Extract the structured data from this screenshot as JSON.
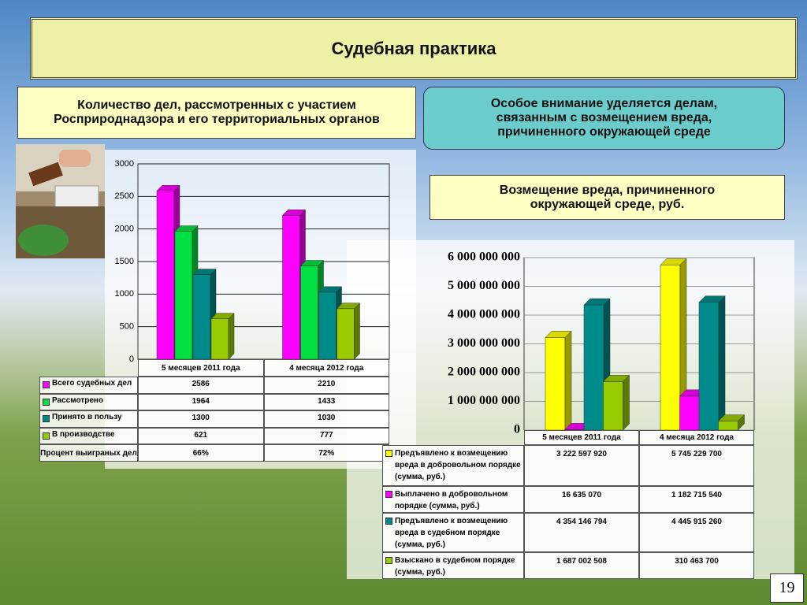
{
  "title": "Судебная практика",
  "box_left": "Количество дел, рассмотренных с участием Росприроднадзора и его территориальных органов",
  "box_right": "Особое внимание уделяется делам, связанным с возмещением вреда, причиненного окружающей среде",
  "box_damage": "Возмещение вреда, причиненного окружающей среде, руб.",
  "page_number": "19",
  "chart_data": [
    {
      "type": "bar",
      "categories": [
        "5 месяцев 2011 года",
        "4 месяца 2012 года"
      ],
      "series": [
        {
          "name": "Всего судебных дел",
          "color": "#ff00ff",
          "values": [
            2586,
            2210
          ]
        },
        {
          "name": "Рассмотрено",
          "color": "#00e040",
          "values": [
            1964,
            1433
          ]
        },
        {
          "name": "Принято в пользу",
          "color": "#008b8b",
          "values": [
            1300,
            1030
          ]
        },
        {
          "name": "В производстве",
          "color": "#99cc00",
          "values": [
            621,
            777
          ]
        }
      ],
      "percent_row": {
        "name": "Процент выиграных дел",
        "values": [
          66,
          72
        ],
        "value_labels": [
          "66%",
          "72%"
        ]
      },
      "ylim": [
        0,
        3000
      ],
      "yticks": [
        0,
        500,
        1000,
        1500,
        2000,
        2500,
        3000
      ],
      "grid": true
    },
    {
      "type": "bar",
      "categories": [
        "5 месяцев 2011 года",
        "4 месяца 2012 года"
      ],
      "series": [
        {
          "name": "Предъявлено к возмещению вреда в добровольном порядке (сумма, руб.)",
          "color": "#ffff00",
          "values": [
            3222597920,
            5745229700
          ],
          "value_labels": [
            "3 222 597 920",
            "5 745 229 700"
          ]
        },
        {
          "name": "Выплачено в добровольном порядке (сумма, руб.)",
          "color": "#ff00ff",
          "values": [
            16635070,
            1182715540
          ],
          "value_labels": [
            "16 635 070",
            "1 182 715 540"
          ]
        },
        {
          "name": "Предъявлено к возмещению вреда в судебном порядке (сумма, руб.)",
          "color": "#008b8b",
          "values": [
            4354146794,
            4445915260
          ],
          "value_labels": [
            "4 354 146 794",
            "4 445 915 260"
          ]
        },
        {
          "name": "Взыскано в судебном порядке (сумма, руб.)",
          "color": "#99cc00",
          "values": [
            1687002508,
            310463700
          ],
          "value_labels": [
            "1 687 002 508",
            "310 463 700"
          ]
        }
      ],
      "ylim": [
        0,
        6000000000
      ],
      "yticks": [
        0,
        {
          "value": 1000000000,
          "label": "1 000 000 000"
        },
        {
          "value": 2000000000,
          "label": "2 000 000 000"
        },
        {
          "value": 3000000000,
          "label": "3 000 000 000"
        },
        {
          "value": 4000000000,
          "label": "4 000 000 000"
        },
        {
          "value": 5000000000,
          "label": "5 000 000 000"
        },
        {
          "value": 6000000000,
          "label": "6 000 000 000"
        }
      ],
      "grid": true
    }
  ]
}
